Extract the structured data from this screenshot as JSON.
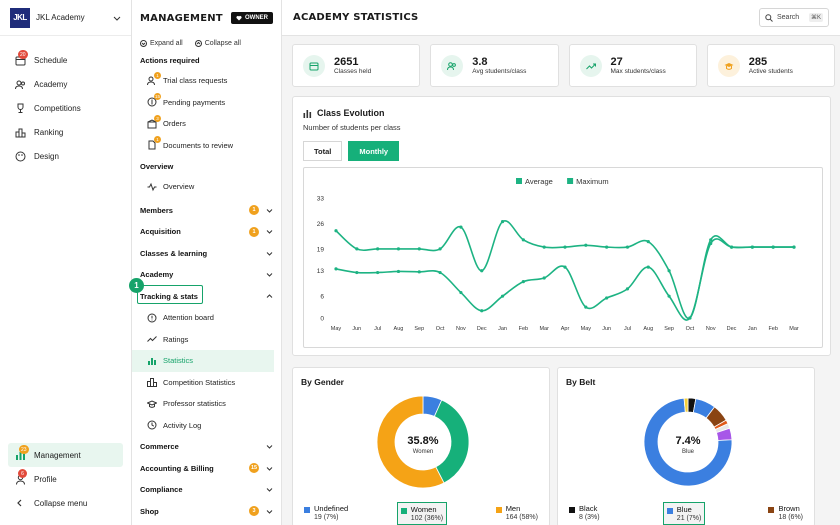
{
  "brand": {
    "name": "JKL Academy",
    "logo_text": "JKL"
  },
  "rail": {
    "items": [
      {
        "label": "Schedule",
        "icon": "calendar-icon",
        "badge": "20"
      },
      {
        "label": "Academy",
        "icon": "users-icon"
      },
      {
        "label": "Competitions",
        "icon": "trophy-icon"
      },
      {
        "label": "Ranking",
        "icon": "podium-icon"
      },
      {
        "label": "Design",
        "icon": "palette-icon"
      }
    ],
    "bottom": [
      {
        "label": "Management",
        "icon": "chart-icon",
        "badge": "23",
        "active": true
      },
      {
        "label": "Profile",
        "icon": "profile-icon",
        "badge": "6"
      },
      {
        "label": "Collapse menu",
        "icon": "chevron-left-icon"
      }
    ]
  },
  "side": {
    "title": "MANAGEMENT",
    "owner_label": "OWNER",
    "expand_all": "Expand all",
    "collapse_all": "Collapse all",
    "actions_required": {
      "label": "Actions required",
      "items": [
        {
          "label": "Trial class requests",
          "badge": "1"
        },
        {
          "label": "Pending payments",
          "badge": "15"
        },
        {
          "label": "Orders",
          "badge": "3"
        },
        {
          "label": "Documents to review",
          "badge": "1"
        }
      ]
    },
    "overview": {
      "label": "Overview",
      "items": [
        {
          "label": "Overview"
        }
      ]
    },
    "groups_top": [
      {
        "label": "Members",
        "badge": "1"
      },
      {
        "label": "Acquisition",
        "badge": "1"
      },
      {
        "label": "Classes & learning"
      },
      {
        "label": "Academy"
      },
      {
        "label": "Tracking & stats",
        "expanded": true
      }
    ],
    "tracking_items": [
      {
        "label": "Attention board"
      },
      {
        "label": "Ratings"
      },
      {
        "label": "Statistics",
        "selected": true
      },
      {
        "label": "Competition Statistics"
      },
      {
        "label": "Professor statistics"
      },
      {
        "label": "Activity Log"
      }
    ],
    "groups_bottom": [
      {
        "label": "Commerce"
      },
      {
        "label": "Accounting & Billing",
        "badge": "15"
      },
      {
        "label": "Compliance"
      },
      {
        "label": "Shop",
        "badge": "3"
      }
    ],
    "step_number": "1"
  },
  "header": {
    "title": "ACADEMY STATISTICS",
    "search_placeholder": "Search",
    "search_shortcut": "⌘K"
  },
  "kpis": [
    {
      "value": "2651",
      "label": "Classes held",
      "icon": "calendar-icon"
    },
    {
      "value": "3.8",
      "label": "Avg students/class",
      "icon": "users-icon"
    },
    {
      "value": "27",
      "label": "Max students/class",
      "icon": "trending-up-icon"
    },
    {
      "value": "285",
      "label": "Active students",
      "icon": "graduation-cap-icon"
    }
  ],
  "evolution": {
    "title": "Class Evolution",
    "subtitle": "Number of students per class",
    "tabs": [
      {
        "label": "Total"
      },
      {
        "label": "Monthly",
        "active": true
      }
    ]
  },
  "chart_data": [
    {
      "type": "line",
      "title": "",
      "categories": [
        "May",
        "Jun",
        "Jul",
        "Aug",
        "Sep",
        "Oct",
        "Nov",
        "Dec",
        "Jan",
        "Feb",
        "Mar",
        "Apr",
        "May",
        "Jun",
        "Jul",
        "Aug",
        "Sep",
        "Oct",
        "Nov",
        "Dec",
        "Jan",
        "Feb",
        "Mar"
      ],
      "series": [
        {
          "name": "Average",
          "values": [
            13.5,
            12.5,
            12.5,
            12.8,
            12.7,
            12.5,
            7,
            2,
            6,
            10,
            11,
            14,
            3,
            5.5,
            8,
            14,
            6,
            0,
            20.5,
            19.5,
            19.5,
            19.5,
            19.5
          ]
        },
        {
          "name": "Maximum",
          "values": [
            24,
            19,
            19,
            19,
            19,
            19,
            25,
            13,
            26.5,
            21.5,
            19.5,
            19.5,
            20,
            19.5,
            19.5,
            21,
            13,
            0,
            21.5,
            19.5,
            19.5,
            19.5,
            19.5
          ]
        }
      ],
      "yticks": [
        0,
        6,
        13,
        19,
        26,
        33
      ],
      "ylim": [
        0,
        33
      ],
      "legend": "top-center",
      "grid": false,
      "color": "#1db383"
    },
    {
      "type": "pie",
      "title": "By Gender",
      "center_value": "35.8%",
      "center_label": "Women",
      "slices": [
        {
          "name": "Undefined",
          "count": "19 (7%)",
          "value": 19,
          "color": "#3b7fe0"
        },
        {
          "name": "Women",
          "count": "102 (36%)",
          "value": 102,
          "color": "#16b07a"
        },
        {
          "name": "Men",
          "count": "164 (58%)",
          "value": 164,
          "color": "#f5a316"
        }
      ],
      "legend": "bottom"
    },
    {
      "type": "pie",
      "title": "By Belt",
      "center_value": "7.4%",
      "center_label": "Blue",
      "slices": [
        {
          "name": "Black",
          "count": "8 (3%)",
          "value": 8,
          "color": "#111111"
        },
        {
          "name": "Blue",
          "count": "21 (7%)",
          "value": 21,
          "color": "#3b7fe0"
        },
        {
          "name": "Brown",
          "count": "18 (6%)",
          "value": 18,
          "color": "#8a4413"
        },
        {
          "value": 4,
          "color": "#e05a1a"
        },
        {
          "value": 5,
          "color": "#e8e8e8"
        },
        {
          "value": 12,
          "color": "#a757e8"
        },
        {
          "value": 209,
          "color": "#3b7fe0"
        },
        {
          "value": 4,
          "color": "#f5cf3a"
        }
      ],
      "legend": "bottom"
    }
  ]
}
